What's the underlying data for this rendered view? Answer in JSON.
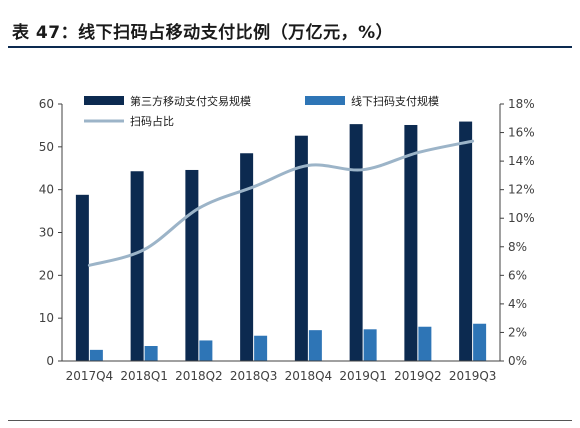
{
  "header": {
    "title": "表 47：线下扫码占移动支付比例（万亿元，%）"
  },
  "colors": {
    "series1": "#0c2a50",
    "series2": "#2e75b6",
    "line": "#9cb4c8",
    "axis": "#404040"
  },
  "chart_data": {
    "type": "bar",
    "title": "",
    "categories": [
      "2017Q4",
      "2018Q1",
      "2018Q2",
      "2018Q3",
      "2018Q4",
      "2019Q1",
      "2019Q2",
      "2019Q3"
    ],
    "series": [
      {
        "name": "第三方移动支付交易规模",
        "axis": "left",
        "type": "bar",
        "values": [
          38.8,
          44.3,
          44.6,
          48.5,
          52.6,
          55.3,
          55.1,
          55.9
        ]
      },
      {
        "name": "线下扫码支付规模",
        "axis": "left",
        "type": "bar",
        "values": [
          2.6,
          3.5,
          4.8,
          5.9,
          7.2,
          7.4,
          8.0,
          8.7
        ]
      },
      {
        "name": "扫码占比",
        "axis": "right",
        "type": "line",
        "values": [
          6.7,
          7.8,
          10.7,
          12.2,
          13.7,
          13.4,
          14.6,
          15.4
        ]
      }
    ],
    "left_axis": {
      "min": 0,
      "max": 60,
      "ticks": [
        "0",
        "10",
        "20",
        "30",
        "40",
        "50",
        "60"
      ]
    },
    "right_axis": {
      "min": 0,
      "max": 18,
      "ticks": [
        "0%",
        "2%",
        "4%",
        "6%",
        "8%",
        "10%",
        "12%",
        "14%",
        "16%",
        "18%"
      ]
    },
    "grid": false,
    "legend_position": "top-left"
  }
}
